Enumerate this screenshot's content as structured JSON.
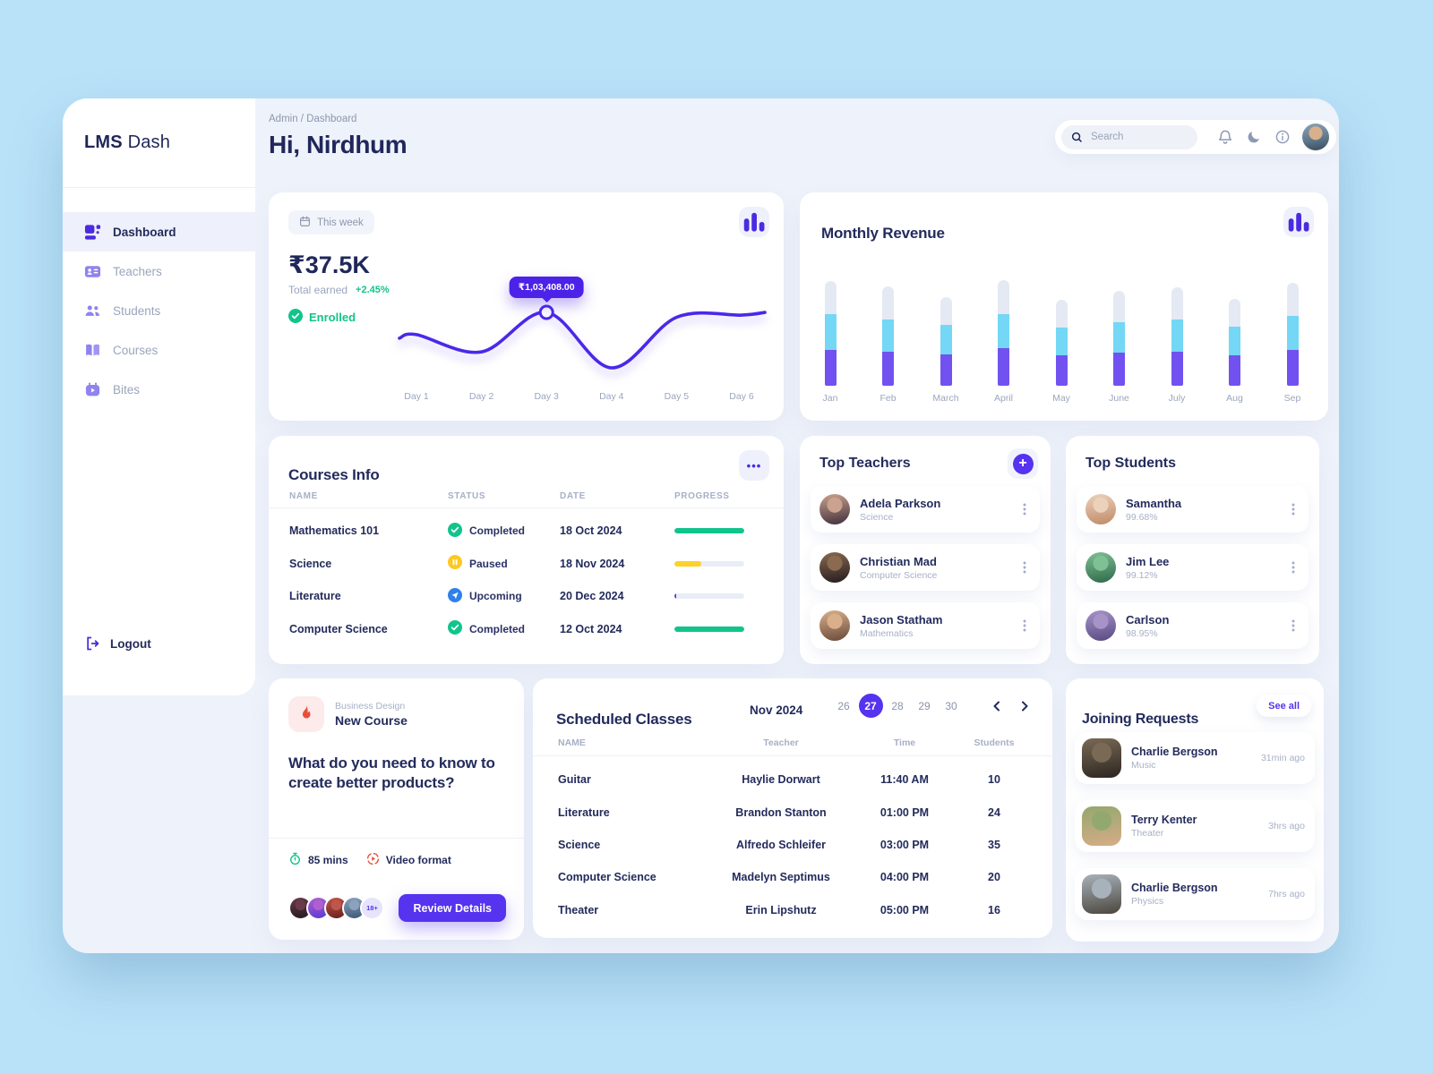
{
  "colors": {
    "page_bg": "#b9e2f8",
    "content_bg": "#eef2fa",
    "accent": "#5633ef",
    "navy": "#232b5c",
    "muted": "#9aa5bc",
    "green": "#12c48b",
    "yellow": "#ffc821",
    "cyan": "#74d7f5",
    "bar_purple": "#7152f0",
    "red": "#e8503a",
    "tooltip_bg": "#4c22e8"
  },
  "brand": {
    "bold": "LMS",
    "light": "Dash"
  },
  "breadcrumb": "Admin / Dashboard",
  "greeting": "Hi, Nirdhum",
  "search": {
    "placeholder": "Search"
  },
  "sidebar": {
    "items": [
      {
        "label": "Dashboard",
        "icon": "dashboard",
        "active": true
      },
      {
        "label": "Teachers",
        "icon": "teachers",
        "active": false
      },
      {
        "label": "Students",
        "icon": "students",
        "active": false
      },
      {
        "label": "Courses",
        "icon": "courses",
        "active": false
      },
      {
        "label": "Bites",
        "icon": "bites",
        "active": false
      }
    ],
    "logout": "Logout"
  },
  "earnings": {
    "period": "This week",
    "amount": "₹37.5K",
    "caption": "Total earned",
    "delta": "+2.45%",
    "badge": "Enrolled"
  },
  "chart_data": [
    {
      "type": "line",
      "title": "Total earned - This week",
      "grid": false,
      "legend": false,
      "x": [
        "Day 1",
        "Day 2",
        "Day 3",
        "Day 4",
        "Day 5",
        "Day 6"
      ],
      "y": [
        88000,
        76000,
        103408,
        65000,
        100000,
        101500
      ],
      "line_color": "#4b28ea",
      "annotation": {
        "label": "₹1,03,408.00",
        "index": 2
      }
    },
    {
      "type": "bar",
      "title": "Monthly Revenue",
      "stacked": true,
      "grid": false,
      "legend": false,
      "units": "relative",
      "categories": [
        "Jan",
        "Feb",
        "March",
        "April",
        "May",
        "June",
        "July",
        "Aug",
        "Sep"
      ],
      "series": [
        {
          "name": "segment-purple",
          "color": "#7152f0",
          "values": [
            40,
            38,
            35,
            42,
            34,
            37,
            38,
            34,
            40
          ]
        },
        {
          "name": "segment-cyan",
          "color": "#74d7f5",
          "values": [
            40,
            36,
            33,
            38,
            31,
            34,
            36,
            32,
            38
          ]
        },
        {
          "name": "segment-gray",
          "color": "#e4e9f3",
          "values": [
            37,
            37,
            31,
            38,
            31,
            35,
            36,
            31,
            37
          ]
        }
      ]
    }
  ],
  "revenue": {
    "title": "Monthly Revenue"
  },
  "courses_info": {
    "title": "Courses Info",
    "columns": [
      "NAME",
      "STATUS",
      "DATE",
      "PROGRESS"
    ],
    "rows": [
      {
        "name": "Mathematics 101",
        "status": "Completed",
        "status_type": "completed",
        "date": "18 Oct 2024",
        "progress": 100,
        "progress_color": "#12c48b"
      },
      {
        "name": "Science",
        "status": "Paused",
        "status_type": "paused",
        "date": "18 Nov 2024",
        "progress": 38,
        "progress_color": "#ffd028"
      },
      {
        "name": "Literature",
        "status": "Upcoming",
        "status_type": "upcoming",
        "date": "20 Dec 2024",
        "progress": 3,
        "progress_color": "#5a35ef"
      },
      {
        "name": "Computer Science",
        "status": "Completed",
        "status_type": "completed",
        "date": "12 Oct 2024",
        "progress": 100,
        "progress_color": "#12c48b"
      }
    ]
  },
  "top_teachers": {
    "title": "Top Teachers",
    "items": [
      {
        "name": "Adela Parkson",
        "subject": "Science",
        "avatar": [
          "#caa28e",
          "#41303c"
        ]
      },
      {
        "name": "Christian Mad",
        "subject": "Computer Science",
        "avatar": [
          "#8a6a50",
          "#241b20"
        ]
      },
      {
        "name": "Jason Statham",
        "subject": "Mathematics",
        "avatar": [
          "#d9b08a",
          "#6a4a3a"
        ]
      }
    ]
  },
  "top_students": {
    "title": "Top Students",
    "items": [
      {
        "name": "Samantha",
        "score": "99.68%",
        "avatar": [
          "#ecd2bc",
          "#c08a66"
        ]
      },
      {
        "name": "Jim Lee",
        "score": "99.12%",
        "avatar": [
          "#7fc095",
          "#2f6a4a"
        ]
      },
      {
        "name": "Carlson",
        "score": "98.95%",
        "avatar": [
          "#a694c8",
          "#5a4a82"
        ]
      }
    ]
  },
  "new_course": {
    "tag": "Business Design",
    "label": "New Course",
    "headline": "What do you need to know to create better products?",
    "duration": "85 mins",
    "format": "Video format",
    "age_badge": "18+",
    "cta": "Review Details",
    "avatars": [
      [
        "#6a3a48",
        "#241a22"
      ],
      [
        "#b05fd0",
        "#5a3bd0"
      ],
      [
        "#c0564b",
        "#6a1e1e"
      ],
      [
        "#8aa2bc",
        "#3c5878"
      ]
    ]
  },
  "scheduled": {
    "title": "Scheduled Classes",
    "month": "Nov 2024",
    "days": [
      "26",
      "27",
      "28",
      "29",
      "30"
    ],
    "selected_day": "27",
    "columns": [
      "NAME",
      "Teacher",
      "Time",
      "Students"
    ],
    "rows": [
      [
        "Guitar",
        "Haylie Dorwart",
        "11:40 AM",
        "10"
      ],
      [
        "Literature",
        "Brandon Stanton",
        "01:00 PM",
        "24"
      ],
      [
        "Science",
        "Alfredo Schleifer",
        "03:00 PM",
        "35"
      ],
      [
        "Computer Science",
        "Madelyn Septimus",
        "04:00 PM",
        "20"
      ],
      [
        "Theater",
        "Erin Lipshutz",
        "05:00 PM",
        "16"
      ]
    ]
  },
  "joining": {
    "title": "Joining Requests",
    "see_all": "See all",
    "items": [
      {
        "name": "Charlie Bergson",
        "subject": "Music",
        "time": "31min ago",
        "avatar": [
          "#7a6a55",
          "#2c2620"
        ]
      },
      {
        "name": "Terry Kenter",
        "subject": "Theater",
        "time": "3hrs ago",
        "avatar": [
          "#93a86e",
          "#d8ac86"
        ]
      },
      {
        "name": "Charlie Bergson",
        "subject": "Physics",
        "time": "7hrs ago",
        "avatar": [
          "#a8b2ba",
          "#4c463e"
        ]
      }
    ]
  }
}
